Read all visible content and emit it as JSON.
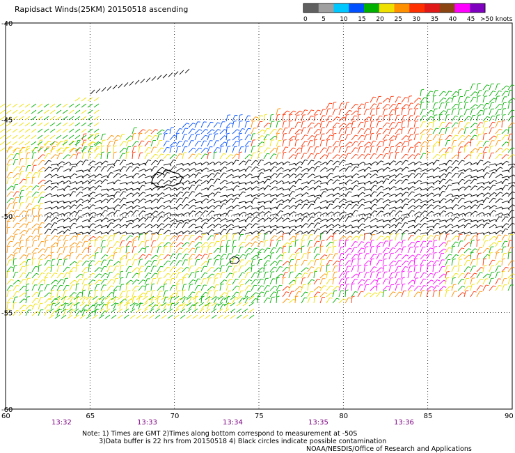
{
  "header": {
    "title": "Rapidsact Winds(25KM) 20150518 ascending"
  },
  "legend": {
    "unit_label": ">50 knots",
    "ticks": [
      "0",
      "5",
      "10",
      "15",
      "20",
      "25",
      "30",
      "35",
      "40",
      "45"
    ],
    "colors": [
      "#606060",
      "#a0a0a0",
      "#00c8ff",
      "#0050ff",
      "#00b000",
      "#f0e000",
      "#ff9000",
      "#ff3000",
      "#e01818",
      "#8b4513",
      "#ff00ff",
      "#8000c0"
    ]
  },
  "map": {
    "lat_ticks": [
      "-40",
      "-45",
      "-50",
      "-55",
      "-60"
    ],
    "lon_ticks": [
      "60",
      "65",
      "70",
      "75",
      "80",
      "85",
      "90"
    ],
    "time_labels": [
      "13:32",
      "13:33",
      "13:34",
      "13:35",
      "13:36"
    ]
  },
  "footer": {
    "note_line1": "Note: 1) Times are GMT 2)Times along bottom correspond to measurement at -50S",
    "note_line2": "3)Data buffer is 22 hrs from 20150518 4) Black circles indicate possible contamination",
    "credit": "NOAA/NESDIS/Office of Research and Applications"
  }
}
